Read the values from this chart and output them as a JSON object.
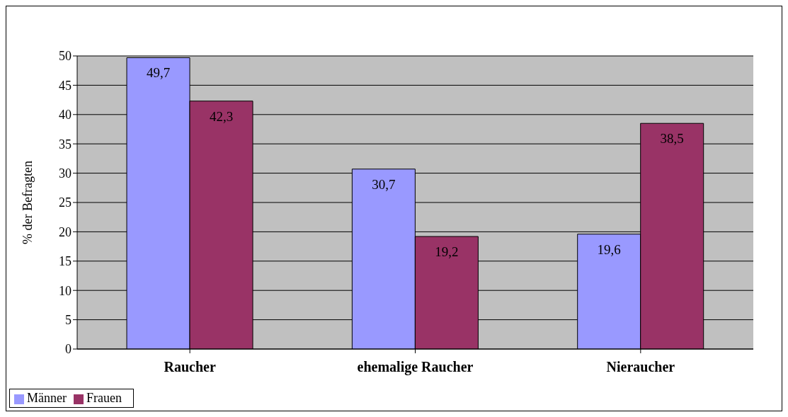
{
  "chart_data": {
    "type": "bar",
    "ylabel": "% der Befragten",
    "categories": [
      "Raucher",
      "ehemalige Raucher",
      "Nieraucher"
    ],
    "series": [
      {
        "name": "Männer",
        "color": "#9999ff",
        "values": [
          49.7,
          30.7,
          19.6
        ],
        "value_labels": [
          "49,7",
          "30,7",
          "19,6"
        ]
      },
      {
        "name": "Frauen",
        "color": "#993366",
        "values": [
          42.3,
          19.2,
          38.5
        ],
        "value_labels": [
          "42,3",
          "19,2",
          "38,5"
        ]
      }
    ],
    "ylim": [
      0,
      50
    ],
    "yticks": [
      0,
      5,
      10,
      15,
      20,
      25,
      30,
      35,
      40,
      45,
      50
    ],
    "grid": "y",
    "legend": "bottom left"
  }
}
